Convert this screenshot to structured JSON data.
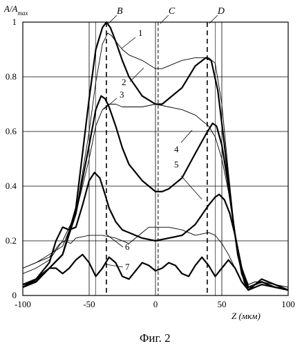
{
  "chart_data": {
    "type": "line",
    "caption": "Фиг. 2",
    "ylabel_main": "A/A",
    "ylabel_sub": "max",
    "xlabel": "Z (мкм)",
    "xlim": [
      -100,
      100
    ],
    "ylim": [
      0,
      1
    ],
    "xticks": [
      -100,
      -50,
      0,
      50,
      100
    ],
    "yticks": [
      0,
      0.2,
      0.4,
      0.6,
      0.8,
      1
    ],
    "xtick_labels": [
      "-100",
      "-50",
      "0",
      "50",
      "100"
    ],
    "ytick_labels": [
      "0",
      "0.2",
      "0.4",
      "0.6",
      "0.8",
      "1"
    ],
    "grid": true,
    "markers": [
      {
        "label": "B",
        "x": -37
      },
      {
        "label": "C",
        "x": 2
      },
      {
        "label": "D",
        "x": 39
      }
    ],
    "series": [
      {
        "name": "1",
        "weight": "thin",
        "x": [
          -100,
          -90,
          -80,
          -70,
          -60,
          -50,
          -45,
          -40,
          -36,
          -33,
          -30,
          -25,
          -20,
          -10,
          0,
          5,
          10,
          20,
          30,
          40,
          45,
          50,
          55,
          60,
          65,
          70,
          75,
          80,
          90,
          100
        ],
        "y": [
          0.1,
          0.12,
          0.15,
          0.18,
          0.3,
          0.6,
          0.78,
          0.92,
          0.96,
          0.95,
          0.93,
          0.9,
          0.88,
          0.86,
          0.83,
          0.83,
          0.84,
          0.86,
          0.87,
          0.87,
          0.85,
          0.7,
          0.45,
          0.22,
          0.09,
          0.04,
          0.05,
          0.05,
          0.04,
          0.03
        ]
      },
      {
        "name": "2",
        "weight": "thick",
        "x": [
          -100,
          -90,
          -80,
          -70,
          -60,
          -50,
          -45,
          -40,
          -37,
          -34,
          -30,
          -25,
          -20,
          -10,
          0,
          5,
          10,
          20,
          30,
          38,
          42,
          47,
          52,
          57,
          62,
          67,
          70,
          75,
          80,
          90,
          100
        ],
        "y": [
          0.04,
          0.06,
          0.1,
          0.15,
          0.32,
          0.72,
          0.9,
          0.98,
          1.0,
          0.98,
          0.93,
          0.86,
          0.8,
          0.73,
          0.7,
          0.7,
          0.72,
          0.76,
          0.84,
          0.87,
          0.86,
          0.75,
          0.55,
          0.33,
          0.15,
          0.05,
          0.02,
          0.04,
          0.05,
          0.03,
          0.02
        ]
      },
      {
        "name": "3",
        "weight": "thick",
        "x": [
          -100,
          -90,
          -80,
          -70,
          -60,
          -50,
          -45,
          -41,
          -38,
          -35,
          -30,
          -25,
          -20,
          -10,
          0,
          5,
          10,
          20,
          30,
          38,
          43,
          46,
          50,
          55,
          60,
          65,
          70,
          75,
          80,
          90,
          100
        ],
        "y": [
          0.03,
          0.05,
          0.1,
          0.15,
          0.3,
          0.55,
          0.68,
          0.73,
          0.72,
          0.69,
          0.62,
          0.54,
          0.48,
          0.42,
          0.38,
          0.38,
          0.39,
          0.43,
          0.52,
          0.59,
          0.63,
          0.62,
          0.55,
          0.4,
          0.22,
          0.08,
          0.02,
          0.04,
          0.06,
          0.04,
          0.02
        ]
      },
      {
        "name": "4",
        "weight": "thin",
        "x": [
          -100,
          -90,
          -80,
          -70,
          -60,
          -50,
          -45,
          -40,
          -35,
          -30,
          -25,
          -20,
          -10,
          0,
          10,
          20,
          30,
          40,
          45,
          50,
          55,
          60,
          65,
          70,
          75,
          80,
          90,
          100
        ],
        "y": [
          0.08,
          0.1,
          0.13,
          0.2,
          0.3,
          0.5,
          0.62,
          0.68,
          0.7,
          0.7,
          0.69,
          0.69,
          0.69,
          0.7,
          0.69,
          0.68,
          0.66,
          0.62,
          0.58,
          0.5,
          0.38,
          0.22,
          0.1,
          0.04,
          0.05,
          0.05,
          0.04,
          0.03
        ]
      },
      {
        "name": "5",
        "weight": "thick",
        "x": [
          -100,
          -90,
          -80,
          -75,
          -70,
          -65,
          -60,
          -55,
          -50,
          -46,
          -42,
          -38,
          -35,
          -30,
          -25,
          -20,
          -10,
          0,
          10,
          20,
          30,
          40,
          45,
          48,
          52,
          56,
          60,
          65,
          70,
          75,
          80,
          90,
          100
        ],
        "y": [
          0.03,
          0.06,
          0.12,
          0.2,
          0.25,
          0.24,
          0.25,
          0.33,
          0.42,
          0.45,
          0.43,
          0.37,
          0.32,
          0.27,
          0.24,
          0.23,
          0.21,
          0.2,
          0.21,
          0.22,
          0.26,
          0.33,
          0.36,
          0.37,
          0.35,
          0.3,
          0.22,
          0.1,
          0.03,
          0.04,
          0.05,
          0.03,
          0.02
        ]
      },
      {
        "name": "6",
        "weight": "thin",
        "x": [
          -100,
          -90,
          -80,
          -72,
          -68,
          -64,
          -60,
          -50,
          -40,
          -30,
          -20,
          -10,
          -5,
          0,
          10,
          20,
          30,
          40,
          45,
          50,
          55,
          60,
          65,
          70,
          75,
          80,
          90,
          100
        ],
        "y": [
          0.1,
          0.12,
          0.14,
          0.19,
          0.2,
          0.19,
          0.21,
          0.22,
          0.22,
          0.21,
          0.19,
          0.23,
          0.25,
          0.25,
          0.25,
          0.24,
          0.22,
          0.23,
          0.22,
          0.19,
          0.15,
          0.1,
          0.05,
          0.02,
          0.04,
          0.05,
          0.03,
          0.02
        ]
      },
      {
        "name": "7",
        "weight": "thick",
        "x": [
          -100,
          -92,
          -85,
          -80,
          -75,
          -70,
          -65,
          -60,
          -55,
          -50,
          -45,
          -40,
          -35,
          -30,
          -25,
          -20,
          -15,
          -10,
          -5,
          0,
          5,
          10,
          15,
          20,
          25,
          30,
          35,
          40,
          45,
          50,
          55,
          60,
          65,
          70,
          75,
          80,
          90,
          100
        ],
        "y": [
          0.04,
          0.05,
          0.08,
          0.1,
          0.1,
          0.08,
          0.1,
          0.13,
          0.15,
          0.12,
          0.07,
          0.1,
          0.14,
          0.12,
          0.07,
          0.06,
          0.09,
          0.12,
          0.11,
          0.09,
          0.1,
          0.12,
          0.11,
          0.08,
          0.07,
          0.11,
          0.14,
          0.11,
          0.07,
          0.1,
          0.13,
          0.1,
          0.05,
          0.02,
          0.03,
          0.04,
          0.03,
          0.02
        ]
      }
    ],
    "series_label_ids": [
      "1",
      "2",
      "3",
      "4",
      "5",
      "6",
      "7"
    ]
  }
}
